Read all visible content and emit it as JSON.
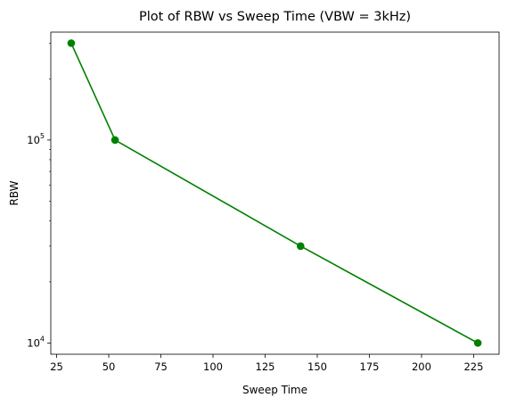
{
  "chart_data": {
    "type": "line",
    "title": "Plot of RBW vs Sweep Time (VBW = 3kHz)",
    "xlabel": "Sweep Time",
    "ylabel": "RBW",
    "x_scale": "linear",
    "y_scale": "log",
    "xlim": [
      22.2,
      237.2
    ],
    "ylim": [
      8800,
      340000
    ],
    "x_ticks": [
      25,
      50,
      75,
      100,
      125,
      150,
      175,
      200,
      225
    ],
    "x_tick_labels": [
      "25",
      "50",
      "75",
      "100",
      "125",
      "150",
      "175",
      "200",
      "225"
    ],
    "y_ticks": [
      10000,
      100000
    ],
    "y_tick_labels": [
      {
        "base": "10",
        "exp": "4"
      },
      {
        "base": "10",
        "exp": "5"
      }
    ],
    "grid": false,
    "legend": "none",
    "series": [
      {
        "color": "#008000",
        "marker": "circle",
        "x": [
          32,
          53,
          142,
          227
        ],
        "y": [
          300000,
          100000,
          30000,
          10000
        ]
      }
    ]
  }
}
